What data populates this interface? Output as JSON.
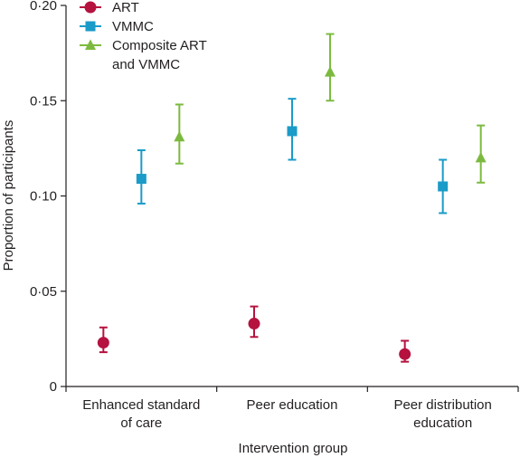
{
  "chart_data": {
    "type": "scatter",
    "title": "",
    "xlabel": "Intervention group",
    "ylabel": "Proportion of participants",
    "ylim": [
      0,
      0.2
    ],
    "yticks": [
      {
        "value": 0,
        "label": "0"
      },
      {
        "value": 0.05,
        "label": "0·05"
      },
      {
        "value": 0.1,
        "label": "0·10"
      },
      {
        "value": 0.15,
        "label": "0·15"
      },
      {
        "value": 0.2,
        "label": "0·20"
      }
    ],
    "categories": [
      [
        "Enhanced standard",
        "of care"
      ],
      [
        "Peer education"
      ],
      [
        "Peer distribution",
        "education"
      ]
    ],
    "legend_position": "top-left",
    "series": [
      {
        "name": "ART",
        "legend_lines": [
          "ART"
        ],
        "marker": "circle",
        "color": "#b5123f",
        "values": [
          0.023,
          0.033,
          0.017
        ],
        "lower": [
          0.018,
          0.026,
          0.013
        ],
        "upper": [
          0.031,
          0.042,
          0.024
        ]
      },
      {
        "name": "VMMC",
        "legend_lines": [
          "VMMC"
        ],
        "marker": "square",
        "color": "#1a9bc8",
        "values": [
          0.109,
          0.134,
          0.105
        ],
        "lower": [
          0.096,
          0.119,
          0.091
        ],
        "upper": [
          0.124,
          0.151,
          0.119
        ]
      },
      {
        "name": "Composite ART and VMMC",
        "legend_lines": [
          "Composite ART",
          "and VMMC"
        ],
        "marker": "triangle",
        "color": "#7cba3f",
        "values": [
          0.131,
          0.165,
          0.12
        ],
        "lower": [
          0.117,
          0.15,
          0.107
        ],
        "upper": [
          0.148,
          0.185,
          0.137
        ]
      }
    ]
  }
}
